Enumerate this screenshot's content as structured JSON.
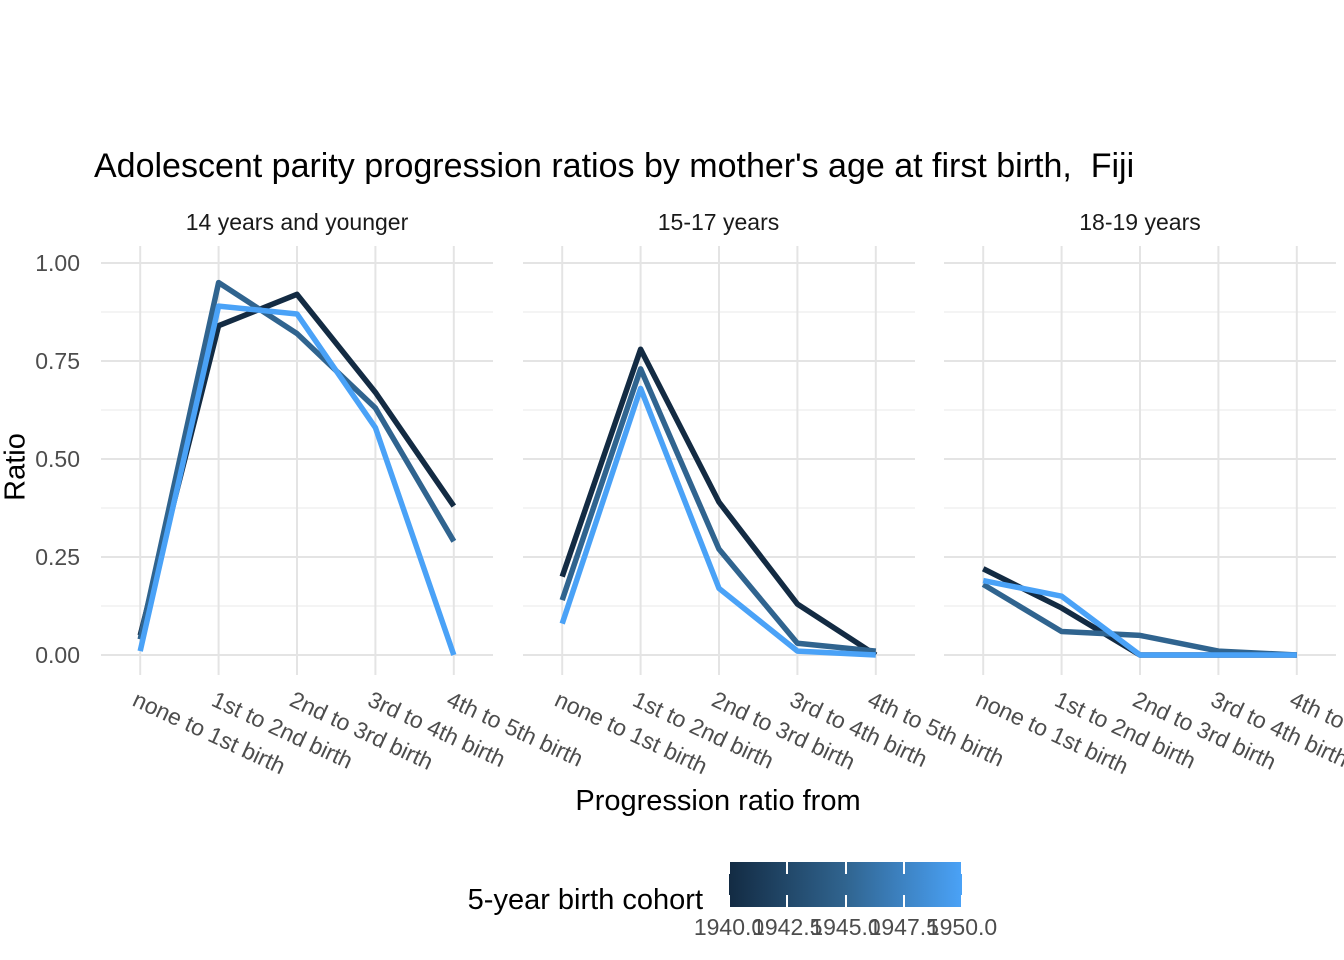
{
  "chart_data": {
    "type": "line",
    "title": "Adolescent parity progression ratios by mother's age at first birth,  Fiji",
    "xlabel": "Progression ratio from",
    "ylabel": "Ratio",
    "categories": [
      "none to 1st birth",
      "1st to 2nd birth",
      "2nd to 3rd birth",
      "3rd to 4th birth",
      "4th to 5th birth"
    ],
    "y_ticks": [
      "0.00",
      "0.25",
      "0.50",
      "0.75",
      "1.00"
    ],
    "ylim": [
      0,
      1
    ],
    "grid": {
      "horizontal": "major+minor",
      "vertical": "major-at-categories",
      "background": "white"
    },
    "cohorts": [
      {
        "name": "1940",
        "color": "#132B43"
      },
      {
        "name": "1945",
        "color": "#30648F"
      },
      {
        "name": "1950",
        "color": "#4AA2F7"
      }
    ],
    "facets": [
      {
        "label": "14 years and younger",
        "series": [
          [
            0.05,
            0.84,
            0.92,
            0.67,
            0.38
          ],
          [
            0.04,
            0.95,
            0.82,
            0.63,
            0.29
          ],
          [
            0.01,
            0.89,
            0.87,
            0.58,
            0.0
          ]
        ]
      },
      {
        "label": "15-17 years",
        "series": [
          [
            0.2,
            0.78,
            0.39,
            0.13,
            0.0
          ],
          [
            0.14,
            0.73,
            0.27,
            0.03,
            0.01
          ],
          [
            0.08,
            0.68,
            0.17,
            0.01,
            0.0
          ]
        ]
      },
      {
        "label": "18-19 years",
        "series": [
          [
            0.22,
            0.12,
            0.0,
            0.0,
            0.0
          ],
          [
            0.18,
            0.06,
            0.05,
            0.01,
            0.0
          ],
          [
            0.19,
            0.15,
            0.0,
            0.0,
            0.0
          ]
        ]
      }
    ],
    "legend": {
      "title": "5-year birth cohort",
      "type": "colorbar",
      "position": "bottom",
      "tick_labels": [
        "1940.0",
        "1942.5",
        "1945.0",
        "1947.5",
        "1950.0"
      ],
      "gradient": [
        "#132B43",
        "#30648F",
        "#4AA2F7"
      ]
    }
  }
}
